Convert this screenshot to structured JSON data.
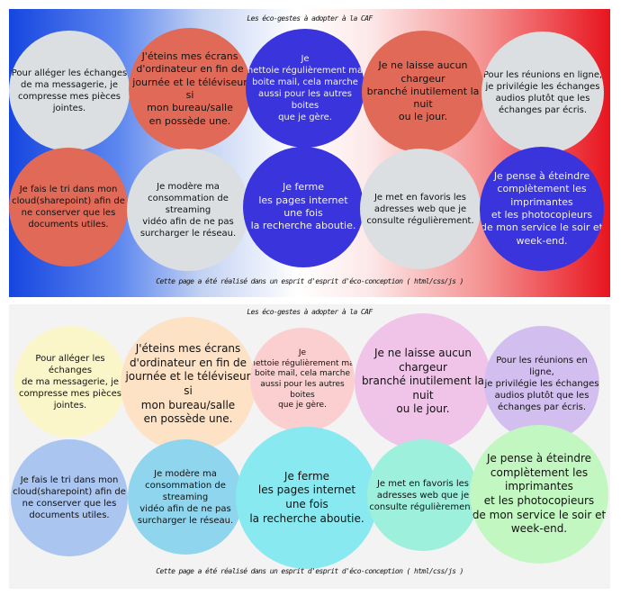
{
  "page": {
    "title": "Les éco-gestes à adopter à la CAF",
    "footer": "Cette page a été réalisé dans un esprit d'esprit d'éco-conception ( html/css/js )"
  },
  "tips": [
    "Pour alléger les échanges\nde ma messagerie, je\ncompresse mes pièces\njointes.",
    "J'éteins mes écrans\nd'ordinateur en fin de\njournée et le téléviseur si\nmon bureau/salle\nen possède une.",
    "Je\nnettoie régulièrement ma\nboite mail, cela marche\naussi pour les autres boites\nque je gère.",
    "Je ne laisse aucun chargeur\nbranché inutilement la nuit\nou le jour.",
    "Pour les réunions en ligne,\nje privilégie les échanges\naudios plutôt que les\néchanges par écris.",
    "Je fais le tri dans mon\ncloud(sharepoint) afin de\nne conserver que les\ndocuments utiles.",
    "Je modère ma\nconsommation de streaming\nvidéo afin de ne pas\nsurcharger le réseau.",
    "Je ferme\nles pages internet\nune fois\nla recherche aboutie.",
    "Je met en favoris les\nadresses web que je\nconsulte régulièrement.",
    "Je pense à éteindre\ncomplètement les\nimprimantes\net les photocopieurs\nde mon service le soir et\nweek-end."
  ],
  "colors": {
    "top": [
      "#e06a57",
      "#e06a57",
      "#3a34dd",
      "#e06a57",
      "#dcdfe1",
      "#e06a57",
      "#dcdfe1",
      "#3a34dd",
      "#dcdfe1",
      "#3a34dd"
    ],
    "top_first": "#dcdfe1",
    "bottom": [
      "#fbf6c9",
      "#fde2c5",
      "#fbcfcf",
      "#efc4e8",
      "#d2bff0",
      "#a9c5f0",
      "#8fd5ee",
      "#88eaf0",
      "#9df0dc",
      "#c3f7c2"
    ]
  }
}
